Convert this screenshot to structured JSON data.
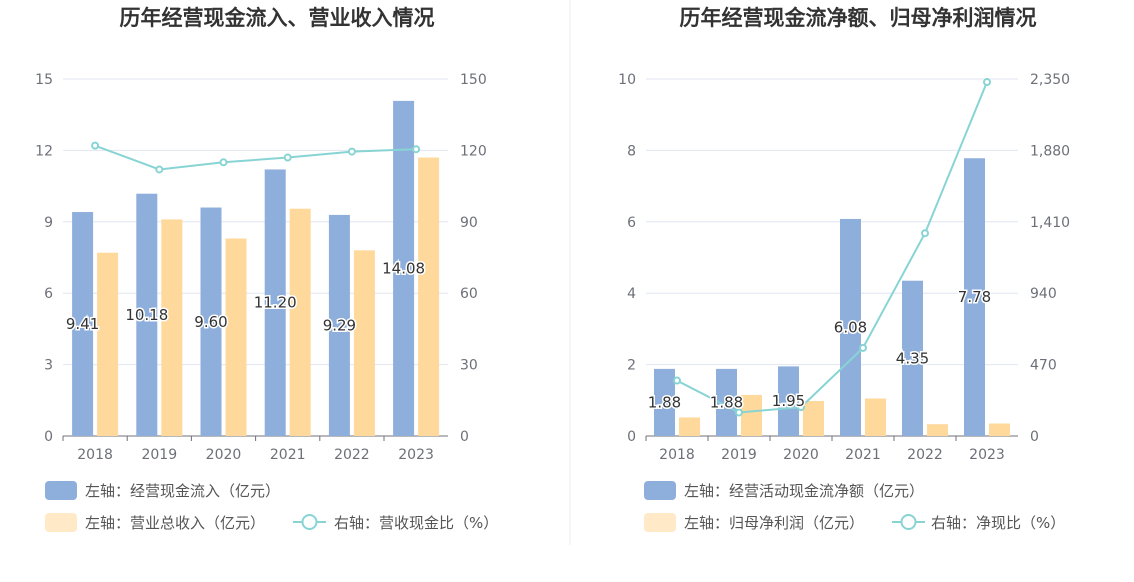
{
  "colors": {
    "bar_primary": "#8eaedc",
    "bar_secondary": "#ffd89b",
    "line": "#88d4d4",
    "grid": "#e0e6f1",
    "axis_text": "#6e7079"
  },
  "chart_data": [
    {
      "type": "bar",
      "title": "历年经营现金流入、营业收入情况",
      "categories": [
        "2018",
        "2019",
        "2020",
        "2021",
        "2022",
        "2023"
      ],
      "series": [
        {
          "name": "左轴：经营现金流入（亿元）",
          "axis": "left",
          "type": "bar",
          "values": [
            9.41,
            10.18,
            9.6,
            11.2,
            9.29,
            14.08
          ],
          "labels": [
            "9.41",
            "10.18",
            "9.60",
            "11.20",
            "9.29",
            "14.08"
          ]
        },
        {
          "name": "左轴：营业总收入（亿元）",
          "axis": "left",
          "type": "bar",
          "values": [
            7.7,
            9.1,
            8.3,
            9.55,
            7.8,
            11.7
          ]
        },
        {
          "name": "右轴：营收现金比（%）",
          "axis": "right",
          "type": "line",
          "values": [
            122,
            112,
            115,
            117,
            119.5,
            120.5
          ]
        }
      ],
      "y_left": {
        "min": 0,
        "max": 15,
        "ticks": [
          "0",
          "3",
          "6",
          "9",
          "12",
          "15"
        ]
      },
      "y_right": {
        "min": 0,
        "max": 150,
        "ticks": [
          "0",
          "30",
          "60",
          "90",
          "120",
          "150"
        ]
      },
      "grid": true,
      "legend_position": "bottom"
    },
    {
      "type": "bar",
      "title": "历年经营现金流净额、归母净利润情况",
      "categories": [
        "2018",
        "2019",
        "2020",
        "2021",
        "2022",
        "2023"
      ],
      "series": [
        {
          "name": "左轴：经营活动现金流净额（亿元）",
          "axis": "left",
          "type": "bar",
          "values": [
            1.88,
            1.88,
            1.95,
            6.08,
            4.35,
            7.78
          ],
          "labels": [
            "1.88",
            "1.88",
            "1.95",
            "6.08",
            "4.35",
            "7.78"
          ]
        },
        {
          "name": "左轴：归母净利润（亿元）",
          "axis": "left",
          "type": "bar",
          "values": [
            0.52,
            1.15,
            0.98,
            1.05,
            0.33,
            0.35
          ]
        },
        {
          "name": "右轴：净现比（%）",
          "axis": "right",
          "type": "line",
          "values": [
            365,
            155,
            190,
            580,
            1335,
            2330
          ]
        }
      ],
      "y_left": {
        "min": 0,
        "max": 10,
        "ticks": [
          "0",
          "2",
          "4",
          "6",
          "8",
          "10"
        ]
      },
      "y_right": {
        "min": 0,
        "max": 2350,
        "ticks": [
          "0",
          "470",
          "940",
          "1,410",
          "1,880",
          "2,350"
        ]
      },
      "grid": true,
      "legend_position": "bottom"
    }
  ]
}
